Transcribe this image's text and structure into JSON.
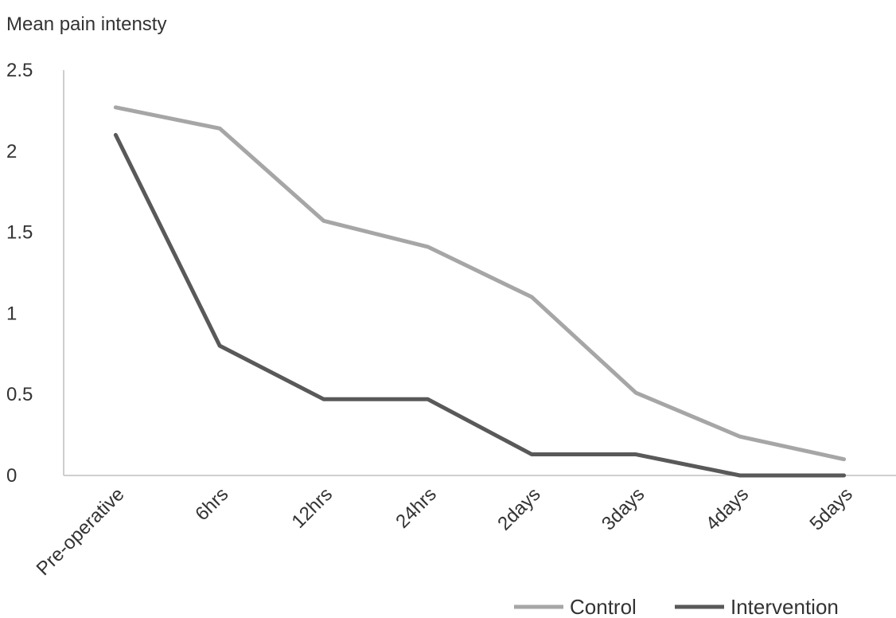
{
  "chart_data": {
    "type": "line",
    "title": "",
    "ylabel": "Mean pain intensty",
    "xlabel": "",
    "ylim": [
      0,
      2.5
    ],
    "yticks": [
      "0",
      "0.5",
      "1",
      "1.5",
      "2",
      "2.5"
    ],
    "categories": [
      "Pre-operative",
      "6hrs",
      "12hrs",
      "24hrs",
      "2days",
      "3days",
      "4days",
      "5days"
    ],
    "series": [
      {
        "name": "Control",
        "color": "#a6a6a6",
        "values": [
          2.27,
          2.14,
          1.57,
          1.41,
          1.1,
          0.51,
          0.24,
          0.1
        ]
      },
      {
        "name": "Intervention",
        "color": "#595959",
        "values": [
          2.1,
          0.8,
          0.47,
          0.47,
          0.13,
          0.13,
          0.0,
          0.0
        ]
      }
    ],
    "grid": false,
    "legend": "bottom-right"
  }
}
